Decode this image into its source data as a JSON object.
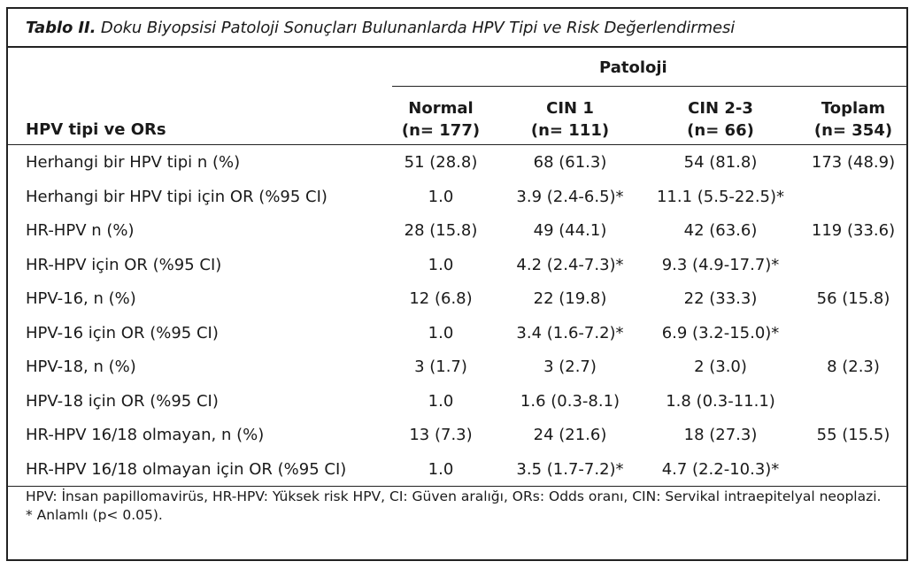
{
  "table": {
    "title_bold": "Tablo II.",
    "title_rest": " Doku Biyopsisi Patoloji Sonuçları Bulunanlarda HPV Tipi ve Risk Değerlendirmesi",
    "group_header": "Patoloji",
    "row_header": "HPV tipi ve ORs",
    "columns": [
      {
        "name": "Normal",
        "n": "(n= 177)"
      },
      {
        "name": "CIN 1",
        "n": "(n= 111)"
      },
      {
        "name": "CIN 2-3",
        "n": "(n= 66)"
      },
      {
        "name": "Toplam",
        "n": "(n= 354)"
      }
    ],
    "rows": [
      {
        "label": "Herhangi bir HPV tipi n (%)",
        "cells": [
          "51 (28.8)",
          "68 (61.3)",
          "54 (81.8)",
          "173 (48.9)"
        ]
      },
      {
        "label": "Herhangi bir HPV tipi için OR (%95 CI)",
        "cells": [
          "1.0",
          "3.9 (2.4-6.5)*",
          "11.1 (5.5-22.5)*",
          ""
        ]
      },
      {
        "label": "HR-HPV n (%)",
        "cells": [
          "28 (15.8)",
          "49 (44.1)",
          "42 (63.6)",
          "119 (33.6)"
        ]
      },
      {
        "label": "HR-HPV için OR (%95 CI)",
        "cells": [
          "1.0",
          "4.2 (2.4-7.3)*",
          "9.3 (4.9-17.7)*",
          ""
        ]
      },
      {
        "label": "HPV-16, n (%)",
        "cells": [
          "12 (6.8)",
          "22 (19.8)",
          "22 (33.3)",
          "56 (15.8)"
        ]
      },
      {
        "label": "HPV-16 için OR (%95 CI)",
        "cells": [
          "1.0",
          "3.4 (1.6-7.2)*",
          "6.9 (3.2-15.0)*",
          ""
        ]
      },
      {
        "label": "HPV-18, n (%)",
        "cells": [
          "3 (1.7)",
          "3 (2.7)",
          "2 (3.0)",
          "8 (2.3)"
        ]
      },
      {
        "label": "HPV-18 için OR (%95 CI)",
        "cells": [
          "1.0",
          "1.6 (0.3-8.1)",
          "1.8 (0.3-11.1)",
          ""
        ]
      },
      {
        "label": "HR-HPV 16/18 olmayan, n (%)",
        "cells": [
          "13 (7.3)",
          "24 (21.6)",
          "18 (27.3)",
          "55 (15.5)"
        ]
      },
      {
        "label": "HR-HPV 16/18 olmayan için OR (%95 CI)",
        "cells": [
          "1.0",
          "3.5 (1.7-7.2)*",
          "4.7 (2.2-10.3)*",
          ""
        ]
      }
    ],
    "footnotes": [
      "HPV: İnsan papillomavirüs, HR-HPV: Yüksek risk HPV, CI: Güven aralığı, ORs: Odds oranı, CIN: Servikal intraepitelyal neoplazi.",
      "* Anlamlı (p< 0.05)."
    ]
  }
}
